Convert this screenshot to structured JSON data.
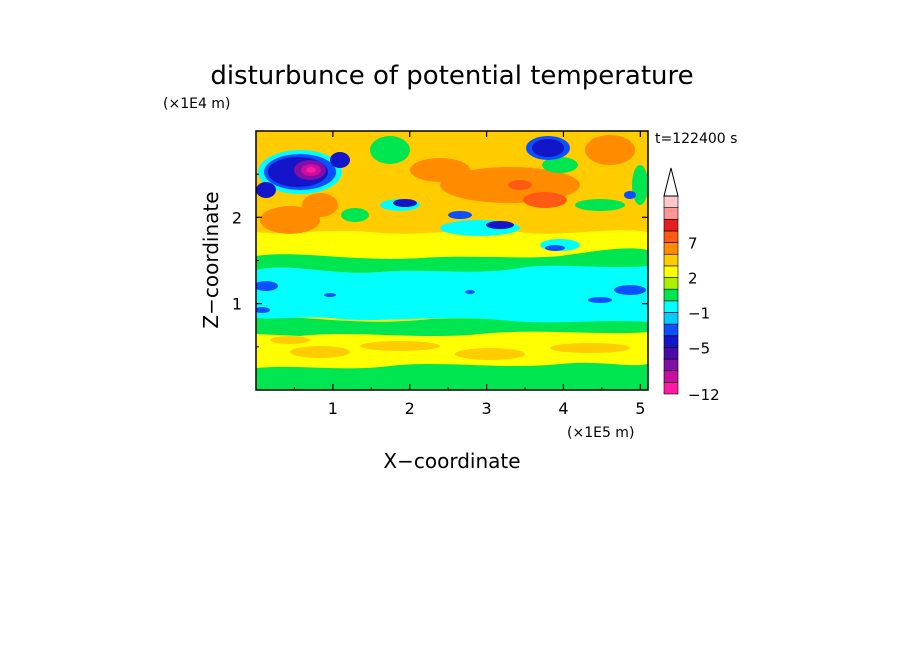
{
  "chart_data": {
    "type": "heatmap",
    "title": "disturbunce of potential temperature",
    "xlabel": "X−coordinate",
    "ylabel": "Z−coordinate",
    "x_unit": "(×1E5 m)",
    "y_unit": "(×1E4 m)",
    "time_label": "t=122400 s",
    "xlim": [
      0,
      5.1
    ],
    "ylim": [
      0,
      3.0
    ],
    "x_ticks": [
      "1",
      "2",
      "3",
      "4",
      "5"
    ],
    "y_ticks": [
      "1",
      "2"
    ],
    "colorbar": {
      "levels": [
        -12,
        -11,
        -9,
        -7,
        -5,
        -4,
        -3,
        -1,
        0,
        1,
        2,
        3,
        5,
        7,
        9,
        11
      ],
      "labels": [
        "−12",
        "−5",
        "−1",
        "2",
        "7"
      ],
      "colors": [
        "#ff1aa6",
        "#c80fa0",
        "#7f0fa6",
        "#4a0aaa",
        "#1414c8",
        "#0a50ff",
        "#00ccff",
        "#00ffff",
        "#00e650",
        "#aaf000",
        "#ffff00",
        "#ffcc00",
        "#ff8c00",
        "#ff5a14",
        "#e61e1e",
        "#ff9696",
        "#ffc8c8"
      ],
      "extend": "max"
    },
    "regions": [
      {
        "z_range": [
          0.0,
          0.1
        ],
        "value": "1 to 2"
      },
      {
        "z_range": [
          0.1,
          0.7
        ],
        "value": "2 to 3"
      },
      {
        "z_range": [
          0.7,
          0.85
        ],
        "value": "0 to 2"
      },
      {
        "z_range": [
          0.85,
          1.45
        ],
        "value": "-1 to 0"
      },
      {
        "z_range": [
          1.45,
          1.8
        ],
        "value": "0 to 3"
      },
      {
        "z_range": [
          1.8,
          2.4
        ],
        "value": "3 to 7"
      },
      {
        "z_range": [
          2.4,
          3.0
        ],
        "value": "-7 to 7"
      }
    ],
    "features": [
      {
        "x": 0.7,
        "z": 2.55,
        "value": -12
      },
      {
        "x": 0.35,
        "z": 2.5,
        "value": -5
      },
      {
        "x": 3.7,
        "z": 2.9,
        "value": -5
      },
      {
        "x": 2.5,
        "z": 2.15,
        "value": -4
      },
      {
        "x": 3.3,
        "z": 2.4,
        "value": 7
      },
      {
        "x": 0.8,
        "z": 2.05,
        "value": 5
      },
      {
        "x": 4.6,
        "z": 2.85,
        "value": 5
      },
      {
        "x": 0.15,
        "z": 1.2,
        "value": -4
      },
      {
        "x": 5.0,
        "z": 1.15,
        "value": -4
      }
    ]
  }
}
